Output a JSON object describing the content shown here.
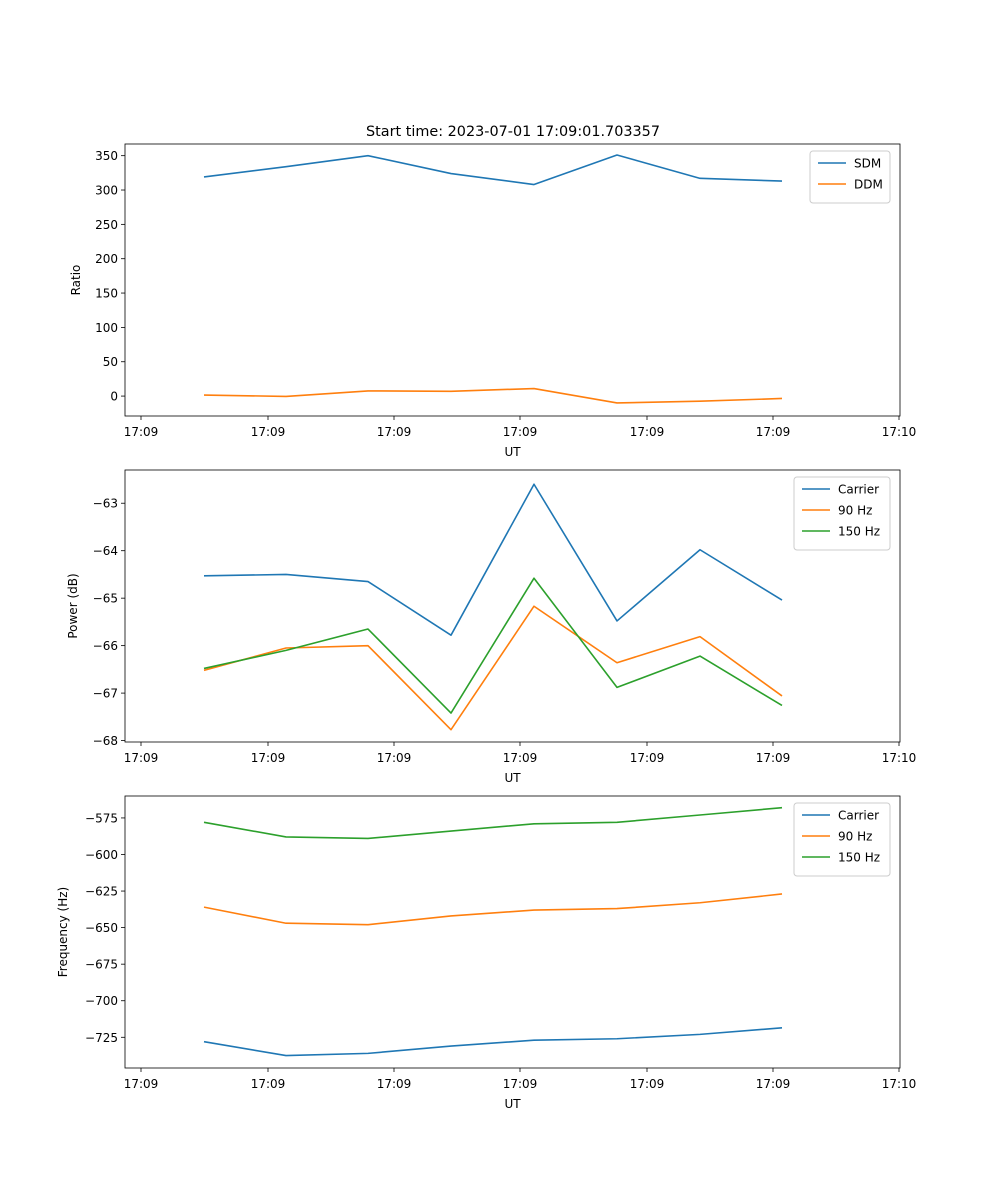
{
  "figure": {
    "title": "Start time: 2023-07-01 17:09:01.703357"
  },
  "chart_data": [
    {
      "type": "line",
      "xlabel": "UT",
      "ylabel": "Ratio",
      "x_tick_labels": [
        "17:09",
        "17:09",
        "17:09",
        "17:09",
        "17:09",
        "17:09",
        "17:10"
      ],
      "yticks": [
        0,
        50,
        100,
        150,
        200,
        250,
        300,
        350
      ],
      "ylim": [
        -29,
        367
      ],
      "legend_position": "top-right",
      "series": [
        {
          "name": "SDM",
          "color": "#1f77b4",
          "values": [
            319,
            334,
            350,
            324,
            308,
            351,
            317,
            313
          ]
        },
        {
          "name": "DDM",
          "color": "#ff7f0e",
          "values": [
            1.5,
            -0.5,
            7.5,
            7.0,
            11.0,
            -10.0,
            -7.5,
            -3.5
          ]
        }
      ]
    },
    {
      "type": "line",
      "xlabel": "UT",
      "ylabel": "Power (dB)",
      "x_tick_labels": [
        "17:09",
        "17:09",
        "17:09",
        "17:09",
        "17:09",
        "17:09",
        "17:10"
      ],
      "yticks": [
        -68,
        -67,
        -66,
        -65,
        -64,
        -63
      ],
      "yticks_display": [
        "−68",
        "−67",
        "−66",
        "−65",
        "−64",
        "−63"
      ],
      "ylim": [
        -68.03,
        -62.3
      ],
      "legend_position": "top-right",
      "series": [
        {
          "name": "Carrier",
          "color": "#1f77b4",
          "values": [
            -64.53,
            -64.5,
            -64.65,
            -65.78,
            -62.6,
            -65.48,
            -63.98,
            -65.04
          ]
        },
        {
          "name": "90 Hz",
          "color": "#ff7f0e",
          "values": [
            -66.52,
            -66.05,
            -66.0,
            -67.77,
            -65.17,
            -66.36,
            -65.81,
            -67.06
          ]
        },
        {
          "name": "150 Hz",
          "color": "#2ca02c",
          "values": [
            -66.48,
            -66.1,
            -65.65,
            -67.42,
            -64.58,
            -66.88,
            -66.22,
            -67.26
          ]
        }
      ]
    },
    {
      "type": "line",
      "xlabel": "UT",
      "ylabel": "Frequency (Hz)",
      "x_tick_labels": [
        "17:09",
        "17:09",
        "17:09",
        "17:09",
        "17:09",
        "17:09",
        "17:10"
      ],
      "yticks": [
        -725,
        -700,
        -675,
        -650,
        -625,
        -600,
        -575
      ],
      "yticks_display": [
        "−725",
        "−700",
        "−675",
        "−650",
        "−625",
        "−600",
        "−575"
      ],
      "ylim": [
        -746,
        -560
      ],
      "legend_position": "top-right",
      "series": [
        {
          "name": "Carrier",
          "color": "#1f77b4",
          "values": [
            -728,
            -737.5,
            -736,
            -731,
            -727,
            -726,
            -723,
            -718.5
          ]
        },
        {
          "name": "90 Hz",
          "color": "#ff7f0e",
          "values": [
            -636,
            -647,
            -648,
            -642,
            -638,
            -637,
            -633,
            -627
          ]
        },
        {
          "name": "150 Hz",
          "color": "#2ca02c",
          "values": [
            -578,
            -588,
            -589,
            -584,
            -579,
            -578,
            -573,
            -568
          ]
        }
      ]
    }
  ]
}
